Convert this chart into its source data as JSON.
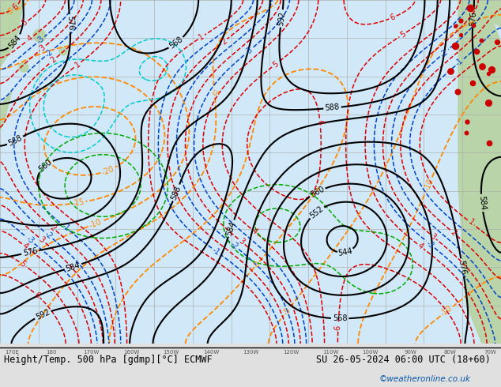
{
  "title_bottom": "Height/Temp. 500 hPa [gdmp][°C] ECMWF",
  "date_str": "SU 26-05-2024 06:00 UTC (18+60)",
  "credit": "©weatheronline.co.uk",
  "bg_color": "#e8e8e8",
  "map_bg": "#dde8f0",
  "land_color": "#c8ddc0",
  "figsize": [
    6.34,
    4.9
  ],
  "dpi": 100,
  "xlim": [
    0,
    634
  ],
  "ylim": [
    0,
    490
  ],
  "grid_color": "#aaaaaa",
  "grid_lw": 0.5,
  "contour_black_lw": 1.5,
  "contour_orange_lw": 1.5,
  "contour_red_lw": 1.2,
  "contour_blue_lw": 1.2,
  "contour_green_lw": 1.2,
  "bottom_bar_height": 55,
  "axis_label_color": "#555555"
}
